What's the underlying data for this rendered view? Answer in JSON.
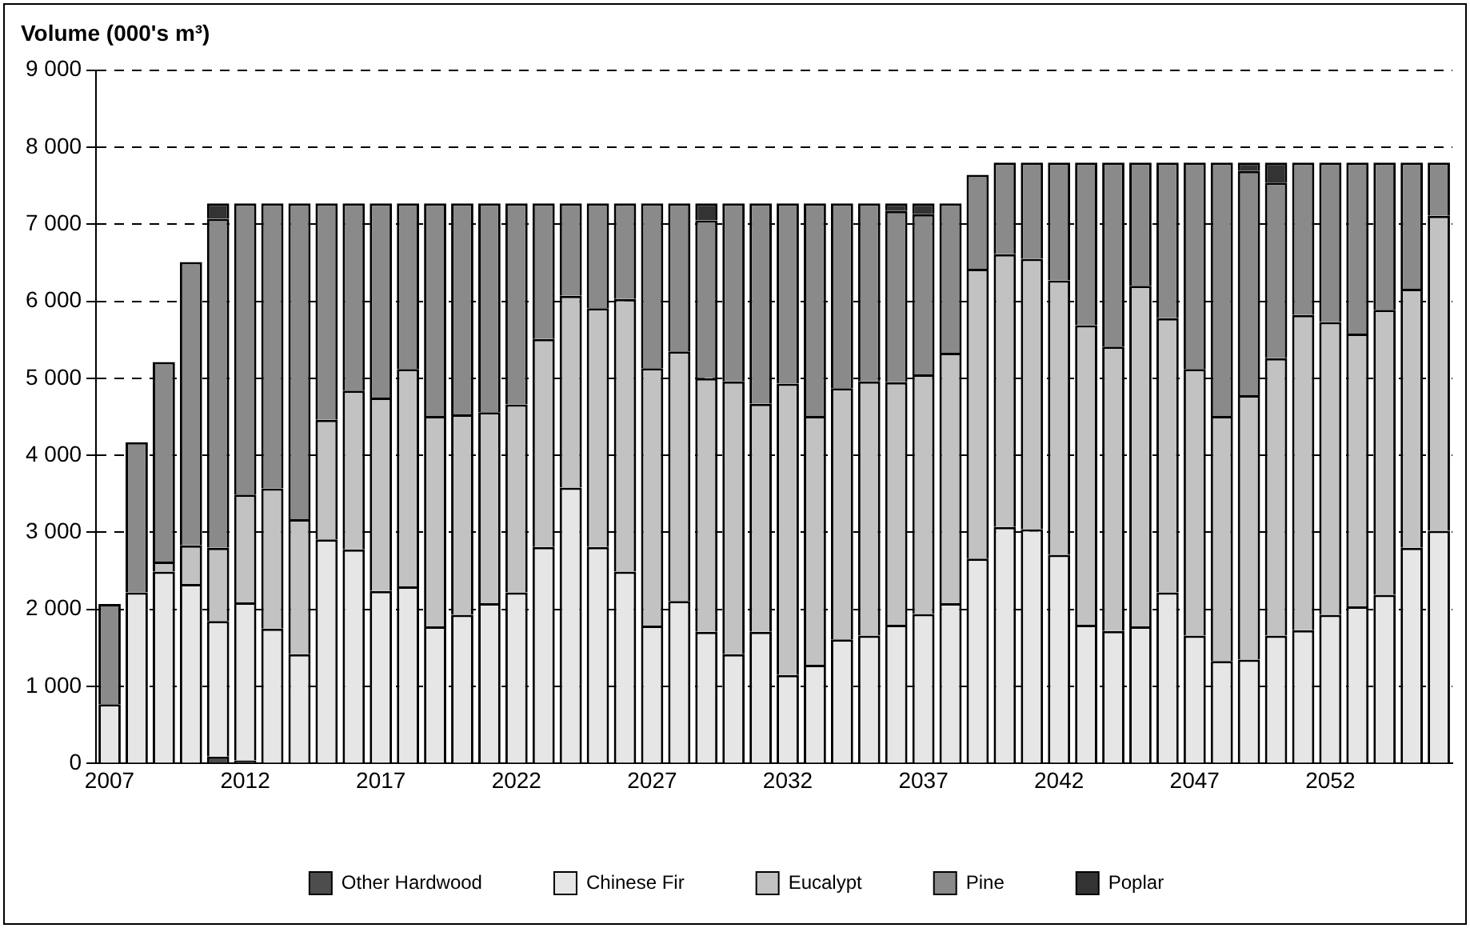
{
  "chart_data": {
    "type": "bar",
    "stacked": true,
    "title": "Volume (000's m³)",
    "categories": [
      "2007",
      null,
      null,
      null,
      null,
      "2012",
      null,
      null,
      null,
      null,
      "2017",
      null,
      null,
      null,
      null,
      "2022",
      null,
      null,
      null,
      null,
      "2027",
      null,
      null,
      null,
      null,
      "2032",
      null,
      null,
      null,
      null,
      "2037",
      null,
      null,
      null,
      null,
      "2042",
      null,
      null,
      null,
      null,
      "2047",
      null,
      null,
      null,
      null,
      "2052",
      null,
      null,
      null,
      null
    ],
    "series": [
      {
        "name": "Other Hardwood",
        "color": "#4d4d4d",
        "values": [
          0,
          0,
          0,
          0,
          90,
          40,
          0,
          0,
          0,
          0,
          0,
          0,
          0,
          0,
          0,
          0,
          0,
          0,
          0,
          0,
          0,
          0,
          0,
          0,
          0,
          0,
          0,
          0,
          0,
          0,
          0,
          0,
          0,
          0,
          0,
          0,
          0,
          0,
          0,
          0,
          0,
          0,
          0,
          0,
          0,
          0,
          0,
          0,
          0,
          0
        ]
      },
      {
        "name": "Chinese Fir",
        "color": "#e6e6e6",
        "values": [
          770,
          2220,
          2490,
          2330,
          1760,
          2050,
          1750,
          1420,
          2910,
          2780,
          2240,
          2300,
          1780,
          1930,
          2080,
          2220,
          2810,
          3580,
          2810,
          2490,
          1790,
          2110,
          1710,
          1420,
          1710,
          1150,
          1280,
          1610,
          1660,
          1800,
          1940,
          2080,
          2660,
          3070,
          3040,
          2710,
          1800,
          1720,
          1780,
          2220,
          1660,
          1330,
          1350,
          1660,
          1730,
          1930,
          2040,
          2190,
          2800,
          3020
        ]
      },
      {
        "name": "Eucalypt",
        "color": "#c2c2c2",
        "values": [
          0,
          0,
          130,
          500,
          950,
          1400,
          1820,
          1750,
          1550,
          2060,
          2510,
          2820,
          2730,
          2600,
          2480,
          2440,
          2700,
          2490,
          3100,
          3540,
          3340,
          3240,
          3290,
          3540,
          2960,
          3780,
          3230,
          3260,
          3300,
          3150,
          3110,
          3250,
          3760,
          3540,
          3510,
          3560,
          3890,
          3690,
          4420,
          3560,
          3460,
          3180,
          3430,
          3600,
          4090,
          3800,
          3540,
          3700,
          3360,
          4090
        ]
      },
      {
        "name": "Pine",
        "color": "#8a8a8a",
        "values": [
          1300,
          1950,
          2590,
          3680,
          4270,
          3780,
          3700,
          4100,
          2810,
          2430,
          2520,
          2150,
          2760,
          2740,
          2710,
          2610,
          1760,
          1200,
          1360,
          1240,
          2140,
          1920,
          2050,
          2310,
          2600,
          2340,
          2760,
          2400,
          2310,
          2220,
          2080,
          1940,
          1220,
          1190,
          1250,
          1530,
          2110,
          2390,
          1600,
          2020,
          2680,
          3290,
          2910,
          2280,
          1980,
          2070,
          2220,
          1910,
          1640,
          690
        ]
      },
      {
        "name": "Poplar",
        "color": "#333333",
        "values": [
          0,
          0,
          0,
          0,
          200,
          0,
          0,
          0,
          0,
          0,
          0,
          0,
          0,
          0,
          0,
          0,
          0,
          0,
          0,
          0,
          0,
          0,
          220,
          0,
          0,
          0,
          0,
          0,
          0,
          100,
          140,
          0,
          0,
          0,
          0,
          0,
          0,
          0,
          0,
          0,
          0,
          0,
          110,
          260,
          0,
          0,
          0,
          0,
          0,
          0
        ]
      }
    ],
    "ylim": [
      0,
      9000
    ],
    "yticks": [
      0,
      {
        "value": 1000,
        "label": "1 000"
      },
      {
        "value": 2000,
        "label": "2 000"
      },
      {
        "value": 3000,
        "label": "3 000"
      },
      {
        "value": 4000,
        "label": "4 000"
      },
      {
        "value": 5000,
        "label": "5 000"
      },
      {
        "value": 6000,
        "label": "6 000"
      },
      {
        "value": 7000,
        "label": "7 000"
      },
      {
        "value": 8000,
        "label": "8 000"
      },
      {
        "value": 9000,
        "label": "9 000"
      }
    ],
    "grid": "y",
    "legend": "bottom"
  }
}
